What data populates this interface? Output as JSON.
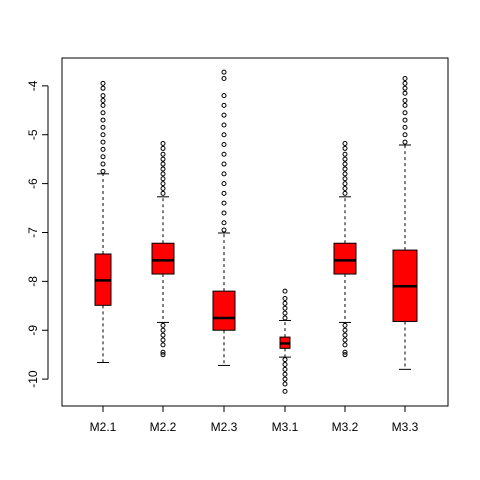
{
  "chart_data": {
    "type": "box",
    "categories": [
      "M2.1",
      "M2.2",
      "M2.3",
      "M3.1",
      "M3.2",
      "M3.3"
    ],
    "color": "#ff0000",
    "boxes": [
      {
        "low": -9.66,
        "q1": -8.49,
        "median": -7.98,
        "q3": -7.44,
        "high": -5.8,
        "outliers": [
          -5.75,
          -5.6,
          -5.45,
          -5.3,
          -5.15,
          -5.0,
          -4.85,
          -4.7,
          -4.55,
          -4.4,
          -4.3,
          -4.2,
          -4.05,
          -3.95
        ]
      },
      {
        "low": -8.84,
        "q1": -7.85,
        "median": -7.57,
        "q3": -7.22,
        "high": -6.27,
        "outliers": [
          -6.2,
          -6.1,
          -6.0,
          -5.9,
          -5.8,
          -5.7,
          -5.6,
          -5.5,
          -5.4,
          -5.28,
          -5.18,
          -8.9,
          -9.0,
          -9.1,
          -9.2,
          -9.3,
          -9.45,
          -9.5
        ]
      },
      {
        "low": -9.72,
        "q1": -9.0,
        "median": -8.75,
        "q3": -8.2,
        "high": -7.01,
        "outliers": [
          -6.95,
          -6.8,
          -6.6,
          -6.4,
          -6.2,
          -6.0,
          -5.8,
          -5.6,
          -5.4,
          -5.2,
          -5.0,
          -4.8,
          -4.6,
          -4.4,
          -4.2,
          -3.85,
          -3.72
        ]
      },
      {
        "low": -9.55,
        "q1": -9.37,
        "median": -9.27,
        "q3": -9.14,
        "high": -8.8,
        "outliers": [
          -8.75,
          -8.65,
          -8.55,
          -8.45,
          -8.35,
          -8.2,
          -9.6,
          -9.7,
          -9.8,
          -9.9,
          -10.0,
          -10.1,
          -10.25
        ]
      },
      {
        "low": -8.84,
        "q1": -7.85,
        "median": -7.57,
        "q3": -7.22,
        "high": -6.27,
        "outliers": [
          -6.2,
          -6.1,
          -6.0,
          -5.9,
          -5.8,
          -5.7,
          -5.6,
          -5.5,
          -5.4,
          -5.28,
          -5.18,
          -8.9,
          -9.0,
          -9.1,
          -9.2,
          -9.3,
          -9.45,
          -9.5
        ]
      },
      {
        "low": -9.8,
        "q1": -8.82,
        "median": -8.1,
        "q3": -7.36,
        "high": -5.21,
        "outliers": [
          -5.15,
          -5.0,
          -4.85,
          -4.7,
          -4.55,
          -4.4,
          -4.3,
          -4.15,
          -4.05,
          -3.95,
          -3.85
        ]
      }
    ],
    "ylim": [
      -10.55,
      -3.43
    ],
    "yticks": [
      -10,
      -9,
      -8,
      -7,
      -6,
      -5,
      -4
    ]
  }
}
